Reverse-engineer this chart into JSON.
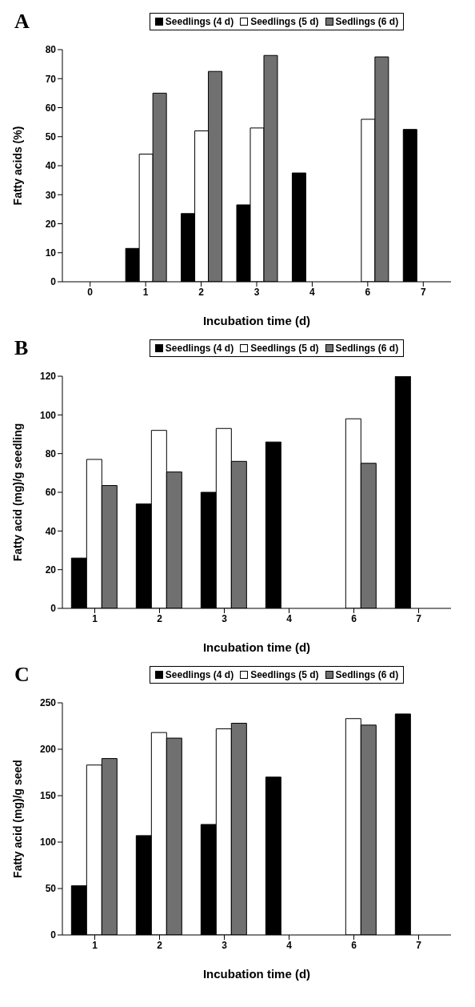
{
  "chart_data": [
    {
      "type": "bar",
      "title": "A",
      "xlabel": "Incubation time (d)",
      "ylabel": "Fatty acids (%)",
      "categories": [
        "0",
        "1",
        "2",
        "3",
        "4",
        "6",
        "7"
      ],
      "ylim": [
        0,
        80
      ],
      "yticks": [
        0,
        10,
        20,
        30,
        40,
        50,
        60,
        70,
        80
      ],
      "grid": false,
      "legend": "top",
      "series": [
        {
          "name": "Seedlings (4 d)",
          "color": "#000000",
          "values": [
            0,
            11.5,
            23.5,
            26.5,
            37.5,
            null,
            52.5
          ]
        },
        {
          "name": "Seedlings (5 d)",
          "color": "#ffffff",
          "values": [
            0,
            44,
            52,
            53,
            null,
            56,
            null
          ]
        },
        {
          "name": "Sedlings (6 d)",
          "color": "#707070",
          "values": [
            0,
            65,
            72.5,
            78,
            null,
            77.5,
            null
          ]
        }
      ]
    },
    {
      "type": "bar",
      "title": "B",
      "xlabel": "Incubation time (d)",
      "ylabel": "Fatty acid (mg)/g seedling",
      "categories": [
        "1",
        "2",
        "3",
        "4",
        "6",
        "7"
      ],
      "ylim": [
        0,
        120
      ],
      "yticks": [
        0,
        20,
        40,
        60,
        80,
        100,
        120
      ],
      "grid": false,
      "legend": "top",
      "series": [
        {
          "name": "Seedlings (4 d)",
          "color": "#000000",
          "values": [
            26,
            54,
            60,
            86,
            null,
            120
          ]
        },
        {
          "name": "Seedlings (5 d)",
          "color": "#ffffff",
          "values": [
            77,
            92,
            93,
            null,
            98,
            null
          ]
        },
        {
          "name": "Sedlings (6 d)",
          "color": "#707070",
          "values": [
            63.5,
            70.5,
            76,
            null,
            75,
            null
          ]
        }
      ]
    },
    {
      "type": "bar",
      "title": "C",
      "xlabel": "Incubation time (d)",
      "ylabel": "Fatty acid (mg)/g seed",
      "categories": [
        "1",
        "2",
        "3",
        "4",
        "6",
        "7"
      ],
      "ylim": [
        0,
        250
      ],
      "yticks": [
        0,
        50,
        100,
        150,
        200,
        250
      ],
      "grid": false,
      "legend": "top",
      "series": [
        {
          "name": "Seedlings (4 d)",
          "color": "#000000",
          "values": [
            53,
            107,
            119,
            170,
            null,
            238
          ]
        },
        {
          "name": "Seedlings (5 d)",
          "color": "#ffffff",
          "values": [
            183,
            218,
            222,
            null,
            233,
            null
          ]
        },
        {
          "name": "Sedlings (6 d)",
          "color": "#707070",
          "values": [
            190,
            212,
            228,
            null,
            226,
            null
          ]
        }
      ]
    }
  ]
}
